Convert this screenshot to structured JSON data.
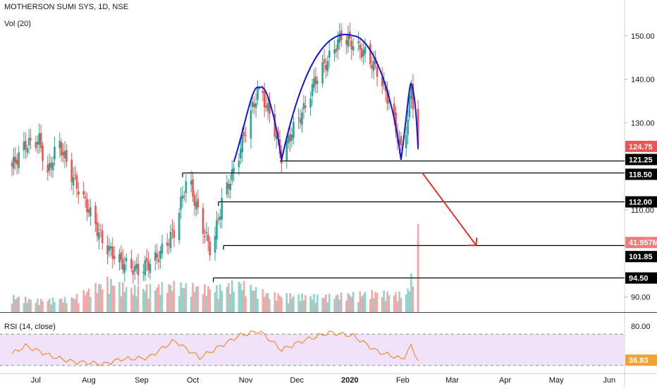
{
  "header": {
    "symbol": "MOTHERSON SUMI SYS, 1D, NSE",
    "volume_indicator": "Vol (20)",
    "rsi_indicator": "RSI (14, close)"
  },
  "colors": {
    "up": "#26a69a",
    "down": "#ef5350",
    "vol_up": "#8fd3cb",
    "vol_down": "#f4a7a6",
    "pattern": "#1515d6",
    "arrow": "#e8211b",
    "rsi_line": "#f57c00",
    "rsi_band": "#f0e2fb",
    "last_price_badge": "#ef5350",
    "level_badge": "#000000"
  },
  "chart_data": {
    "type": "candlestick",
    "title": "MOTHERSON SUMI SYS, 1D, NSE",
    "price_axis": {
      "ticks": [
        "150.00",
        "140.00",
        "130.00",
        "110.00",
        "90.00"
      ],
      "range": [
        86.5,
        155
      ]
    },
    "x_axis": {
      "labels": [
        "Jul",
        "Aug",
        "Sep",
        "Oct",
        "Nov",
        "Dec",
        "2020",
        "Feb",
        "Mar",
        "Apr",
        "May",
        "Jun"
      ]
    },
    "last_price": "124.75",
    "last_volume": "41.957M",
    "levels": [
      "121.25",
      "118.50",
      "112.00",
      "101.85",
      "94.50"
    ],
    "price_path": [
      [
        "2019-06-17",
        120
      ],
      [
        "2019-06-25",
        125
      ],
      [
        "2019-07-03",
        126
      ],
      [
        "2019-07-08",
        118
      ],
      [
        "2019-07-14",
        126
      ],
      [
        "2019-07-22",
        118
      ],
      [
        "2019-08-01",
        110
      ],
      [
        "2019-08-10",
        102
      ],
      [
        "2019-08-20",
        98
      ],
      [
        "2019-08-30",
        96
      ],
      [
        "2019-09-10",
        99
      ],
      [
        "2019-09-20",
        105
      ],
      [
        "2019-09-28",
        118
      ],
      [
        "2019-10-05",
        108
      ],
      [
        "2019-10-12",
        100
      ],
      [
        "2019-10-18",
        112
      ],
      [
        "2019-10-26",
        120
      ],
      [
        "2019-11-02",
        130
      ],
      [
        "2019-11-09",
        138
      ],
      [
        "2019-11-17",
        130
      ],
      [
        "2019-11-22",
        122
      ],
      [
        "2019-11-28",
        128
      ],
      [
        "2019-12-05",
        133
      ],
      [
        "2019-12-12",
        140
      ],
      [
        "2019-12-20",
        145
      ],
      [
        "2019-12-27",
        150
      ],
      [
        "2020-01-03",
        148
      ],
      [
        "2020-01-10",
        146
      ],
      [
        "2020-01-17",
        142
      ],
      [
        "2020-01-24",
        135
      ],
      [
        "2020-02-01",
        122
      ],
      [
        "2020-02-06",
        138
      ],
      [
        "2020-02-10",
        124.75
      ]
    ],
    "volume_in_millions": [
      [
        "2019-06-17",
        8
      ],
      [
        "2019-07-01",
        6
      ],
      [
        "2019-07-22",
        7
      ],
      [
        "2019-08-12",
        16
      ],
      [
        "2019-08-26",
        12
      ],
      [
        "2019-09-20",
        14
      ],
      [
        "2019-10-14",
        12
      ],
      [
        "2019-10-28",
        15
      ],
      [
        "2019-11-15",
        9
      ],
      [
        "2019-12-15",
        8
      ],
      [
        "2020-01-15",
        10
      ],
      [
        "2020-02-03",
        9
      ],
      [
        "2020-02-07",
        20
      ],
      [
        "2020-02-10",
        41.957
      ]
    ],
    "rsi": {
      "ticks": [
        "80.00"
      ],
      "last_value": "36.83",
      "path": [
        [
          "2019-06-17",
          45
        ],
        [
          "2019-06-25",
          55
        ],
        [
          "2019-07-10",
          42
        ],
        [
          "2019-07-22",
          35
        ],
        [
          "2019-08-10",
          32
        ],
        [
          "2019-08-20",
          38
        ],
        [
          "2019-09-05",
          40
        ],
        [
          "2019-09-20",
          62
        ],
        [
          "2019-10-05",
          40
        ],
        [
          "2019-10-15",
          52
        ],
        [
          "2019-10-28",
          68
        ],
        [
          "2019-11-09",
          74
        ],
        [
          "2019-11-22",
          50
        ],
        [
          "2019-12-05",
          62
        ],
        [
          "2019-12-20",
          72
        ],
        [
          "2020-01-03",
          68
        ],
        [
          "2020-01-17",
          48
        ],
        [
          "2020-02-01",
          38
        ],
        [
          "2020-02-06",
          55
        ],
        [
          "2020-02-10",
          36.83
        ]
      ]
    },
    "annotations": {
      "double_dome_left": [
        "2019-11-09",
        138
      ],
      "double_dome_right": [
        "2020-01-03",
        150
      ],
      "arrow_from": [
        "2020-02-10",
        118.5
      ],
      "arrow_to": [
        "2020-03-15",
        101.85
      ]
    }
  }
}
